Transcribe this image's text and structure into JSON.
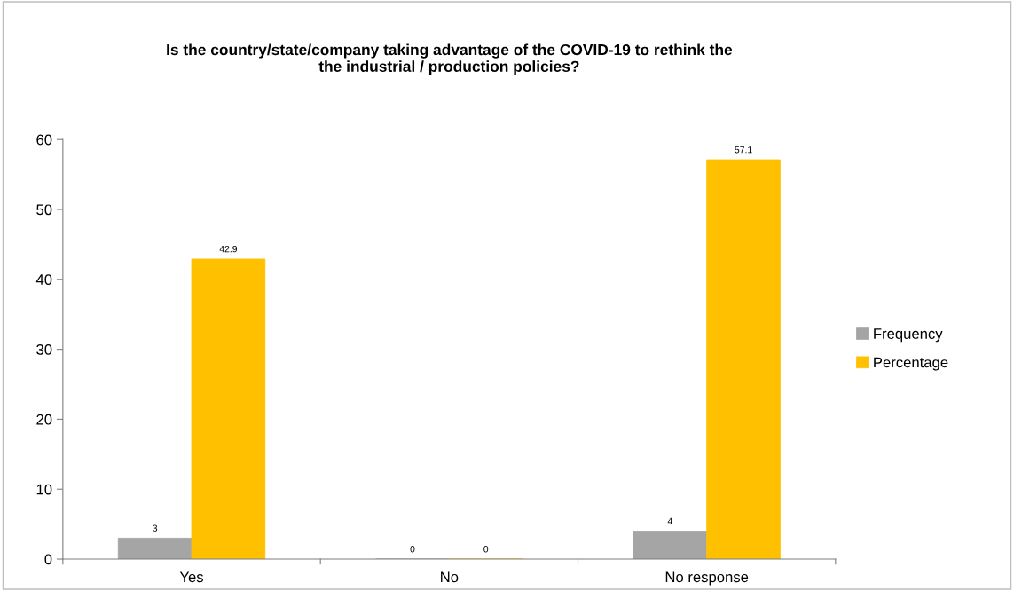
{
  "chart_data": {
    "type": "bar",
    "title": "Is the country/state/company taking advantage of the COVID-19 to rethink the\nthe industrial / production policies?",
    "categories": [
      "Yes",
      "No",
      "No response"
    ],
    "series": [
      {
        "name": "Frequency",
        "color": "#a5a5a5",
        "values": [
          3,
          0,
          4
        ]
      },
      {
        "name": "Percentage",
        "color": "#ffc000",
        "values": [
          42.9,
          0,
          57.1
        ]
      }
    ],
    "ylim": [
      0,
      60
    ],
    "yticks": [
      0,
      10,
      20,
      30,
      40,
      50,
      60
    ],
    "grid": false,
    "legend": "right",
    "data_labels": true
  }
}
